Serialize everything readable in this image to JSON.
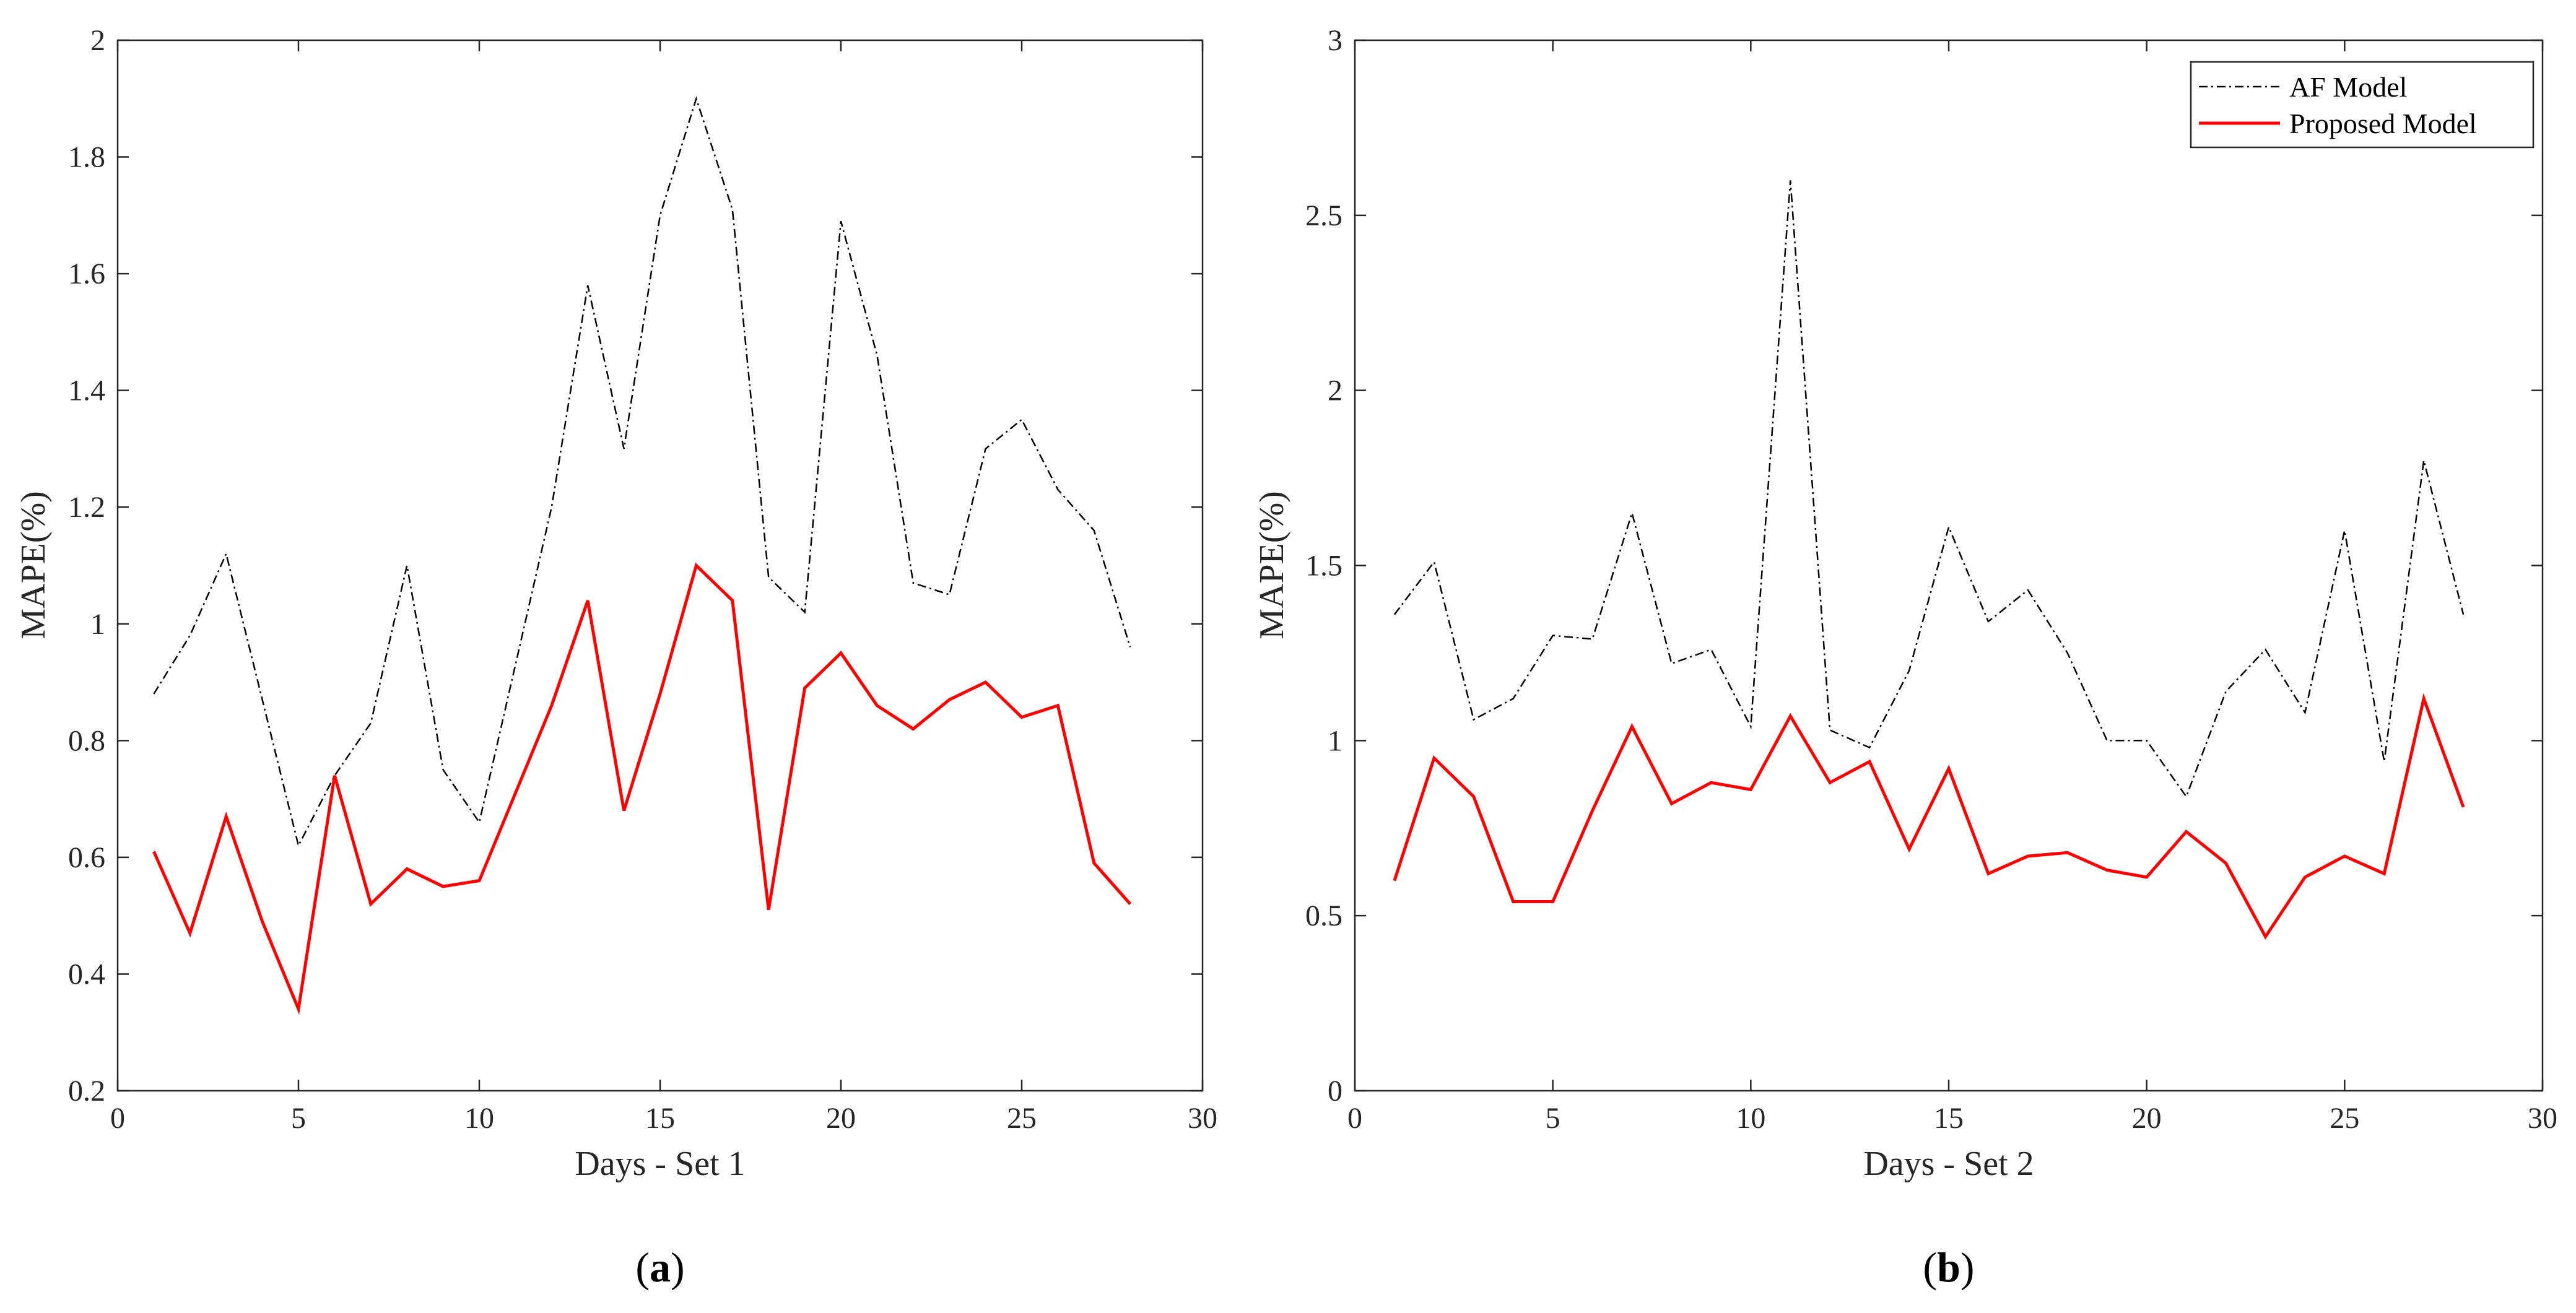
{
  "chart_data": [
    {
      "type": "line",
      "panel_label": "a",
      "xlabel": "Days - Set 1",
      "ylabel": "MAPE(%)",
      "xlim": [
        0,
        30
      ],
      "ylim": [
        0.2,
        2
      ],
      "xticks": [
        0,
        5,
        10,
        15,
        20,
        25,
        30
      ],
      "yticks": [
        0.2,
        0.4,
        0.6,
        0.8,
        1,
        1.2,
        1.4,
        1.6,
        1.8,
        2
      ],
      "ytick_labels": [
        "0.2",
        "0.4",
        "0.6",
        "0.8",
        "1",
        "1.2",
        "1.4",
        "1.6",
        "1.8",
        "2"
      ],
      "x": [
        1,
        2,
        3,
        4,
        5,
        6,
        7,
        8,
        9,
        10,
        11,
        12,
        13,
        14,
        15,
        16,
        17,
        18,
        19,
        20,
        21,
        22,
        23,
        24,
        25,
        26,
        27,
        28
      ],
      "series": [
        {
          "name": "AF Model",
          "color": "#000000",
          "style": "dash-dot",
          "values": [
            0.88,
            0.98,
            1.12,
            0.87,
            0.62,
            0.74,
            0.83,
            1.1,
            0.75,
            0.66,
            0.93,
            1.2,
            1.58,
            1.3,
            1.7,
            1.9,
            1.71,
            1.08,
            1.02,
            1.69,
            1.46,
            1.07,
            1.05,
            1.3,
            1.35,
            1.23,
            1.16,
            0.96
          ]
        },
        {
          "name": "Proposed Model",
          "color": "#ff0000",
          "style": "solid",
          "values": [
            0.61,
            0.47,
            0.67,
            0.49,
            0.34,
            0.74,
            0.52,
            0.58,
            0.55,
            0.56,
            0.71,
            0.86,
            1.04,
            0.68,
            0.88,
            1.1,
            1.04,
            0.51,
            0.89,
            0.95,
            0.86,
            0.82,
            0.87,
            0.9,
            0.84,
            0.86,
            0.59,
            0.52
          ]
        }
      ],
      "legend": false
    },
    {
      "type": "line",
      "panel_label": "b",
      "xlabel": "Days - Set 2",
      "ylabel": "MAPE(%)",
      "xlim": [
        0,
        30
      ],
      "ylim": [
        0,
        3
      ],
      "xticks": [
        0,
        5,
        10,
        15,
        20,
        25,
        30
      ],
      "yticks": [
        0,
        0.5,
        1,
        1.5,
        2,
        2.5,
        3
      ],
      "ytick_labels": [
        "0",
        "0.5",
        "1",
        "1.5",
        "2",
        "2.5",
        "3"
      ],
      "x": [
        1,
        2,
        3,
        4,
        5,
        6,
        7,
        8,
        9,
        10,
        11,
        12,
        13,
        14,
        15,
        16,
        17,
        18,
        19,
        20,
        21,
        22,
        23,
        24,
        25,
        26,
        27,
        28
      ],
      "series": [
        {
          "name": "AF Model",
          "color": "#000000",
          "style": "dash-dot",
          "values": [
            1.36,
            1.51,
            1.06,
            1.12,
            1.3,
            1.29,
            1.65,
            1.22,
            1.26,
            1.04,
            2.6,
            1.03,
            0.98,
            1.2,
            1.61,
            1.34,
            1.43,
            1.25,
            1.0,
            1.0,
            0.84,
            1.14,
            1.26,
            1.08,
            1.6,
            0.94,
            1.8,
            1.36
          ]
        },
        {
          "name": "Proposed Model",
          "color": "#ff0000",
          "style": "solid",
          "values": [
            0.6,
            0.95,
            0.84,
            0.54,
            0.54,
            0.8,
            1.04,
            0.82,
            0.88,
            0.86,
            1.07,
            0.88,
            0.94,
            0.69,
            0.92,
            0.62,
            0.67,
            0.68,
            0.63,
            0.61,
            0.74,
            0.65,
            0.44,
            0.61,
            0.67,
            0.62,
            1.12,
            0.81
          ]
        }
      ],
      "legend": true,
      "legend_position": "top-right"
    }
  ]
}
